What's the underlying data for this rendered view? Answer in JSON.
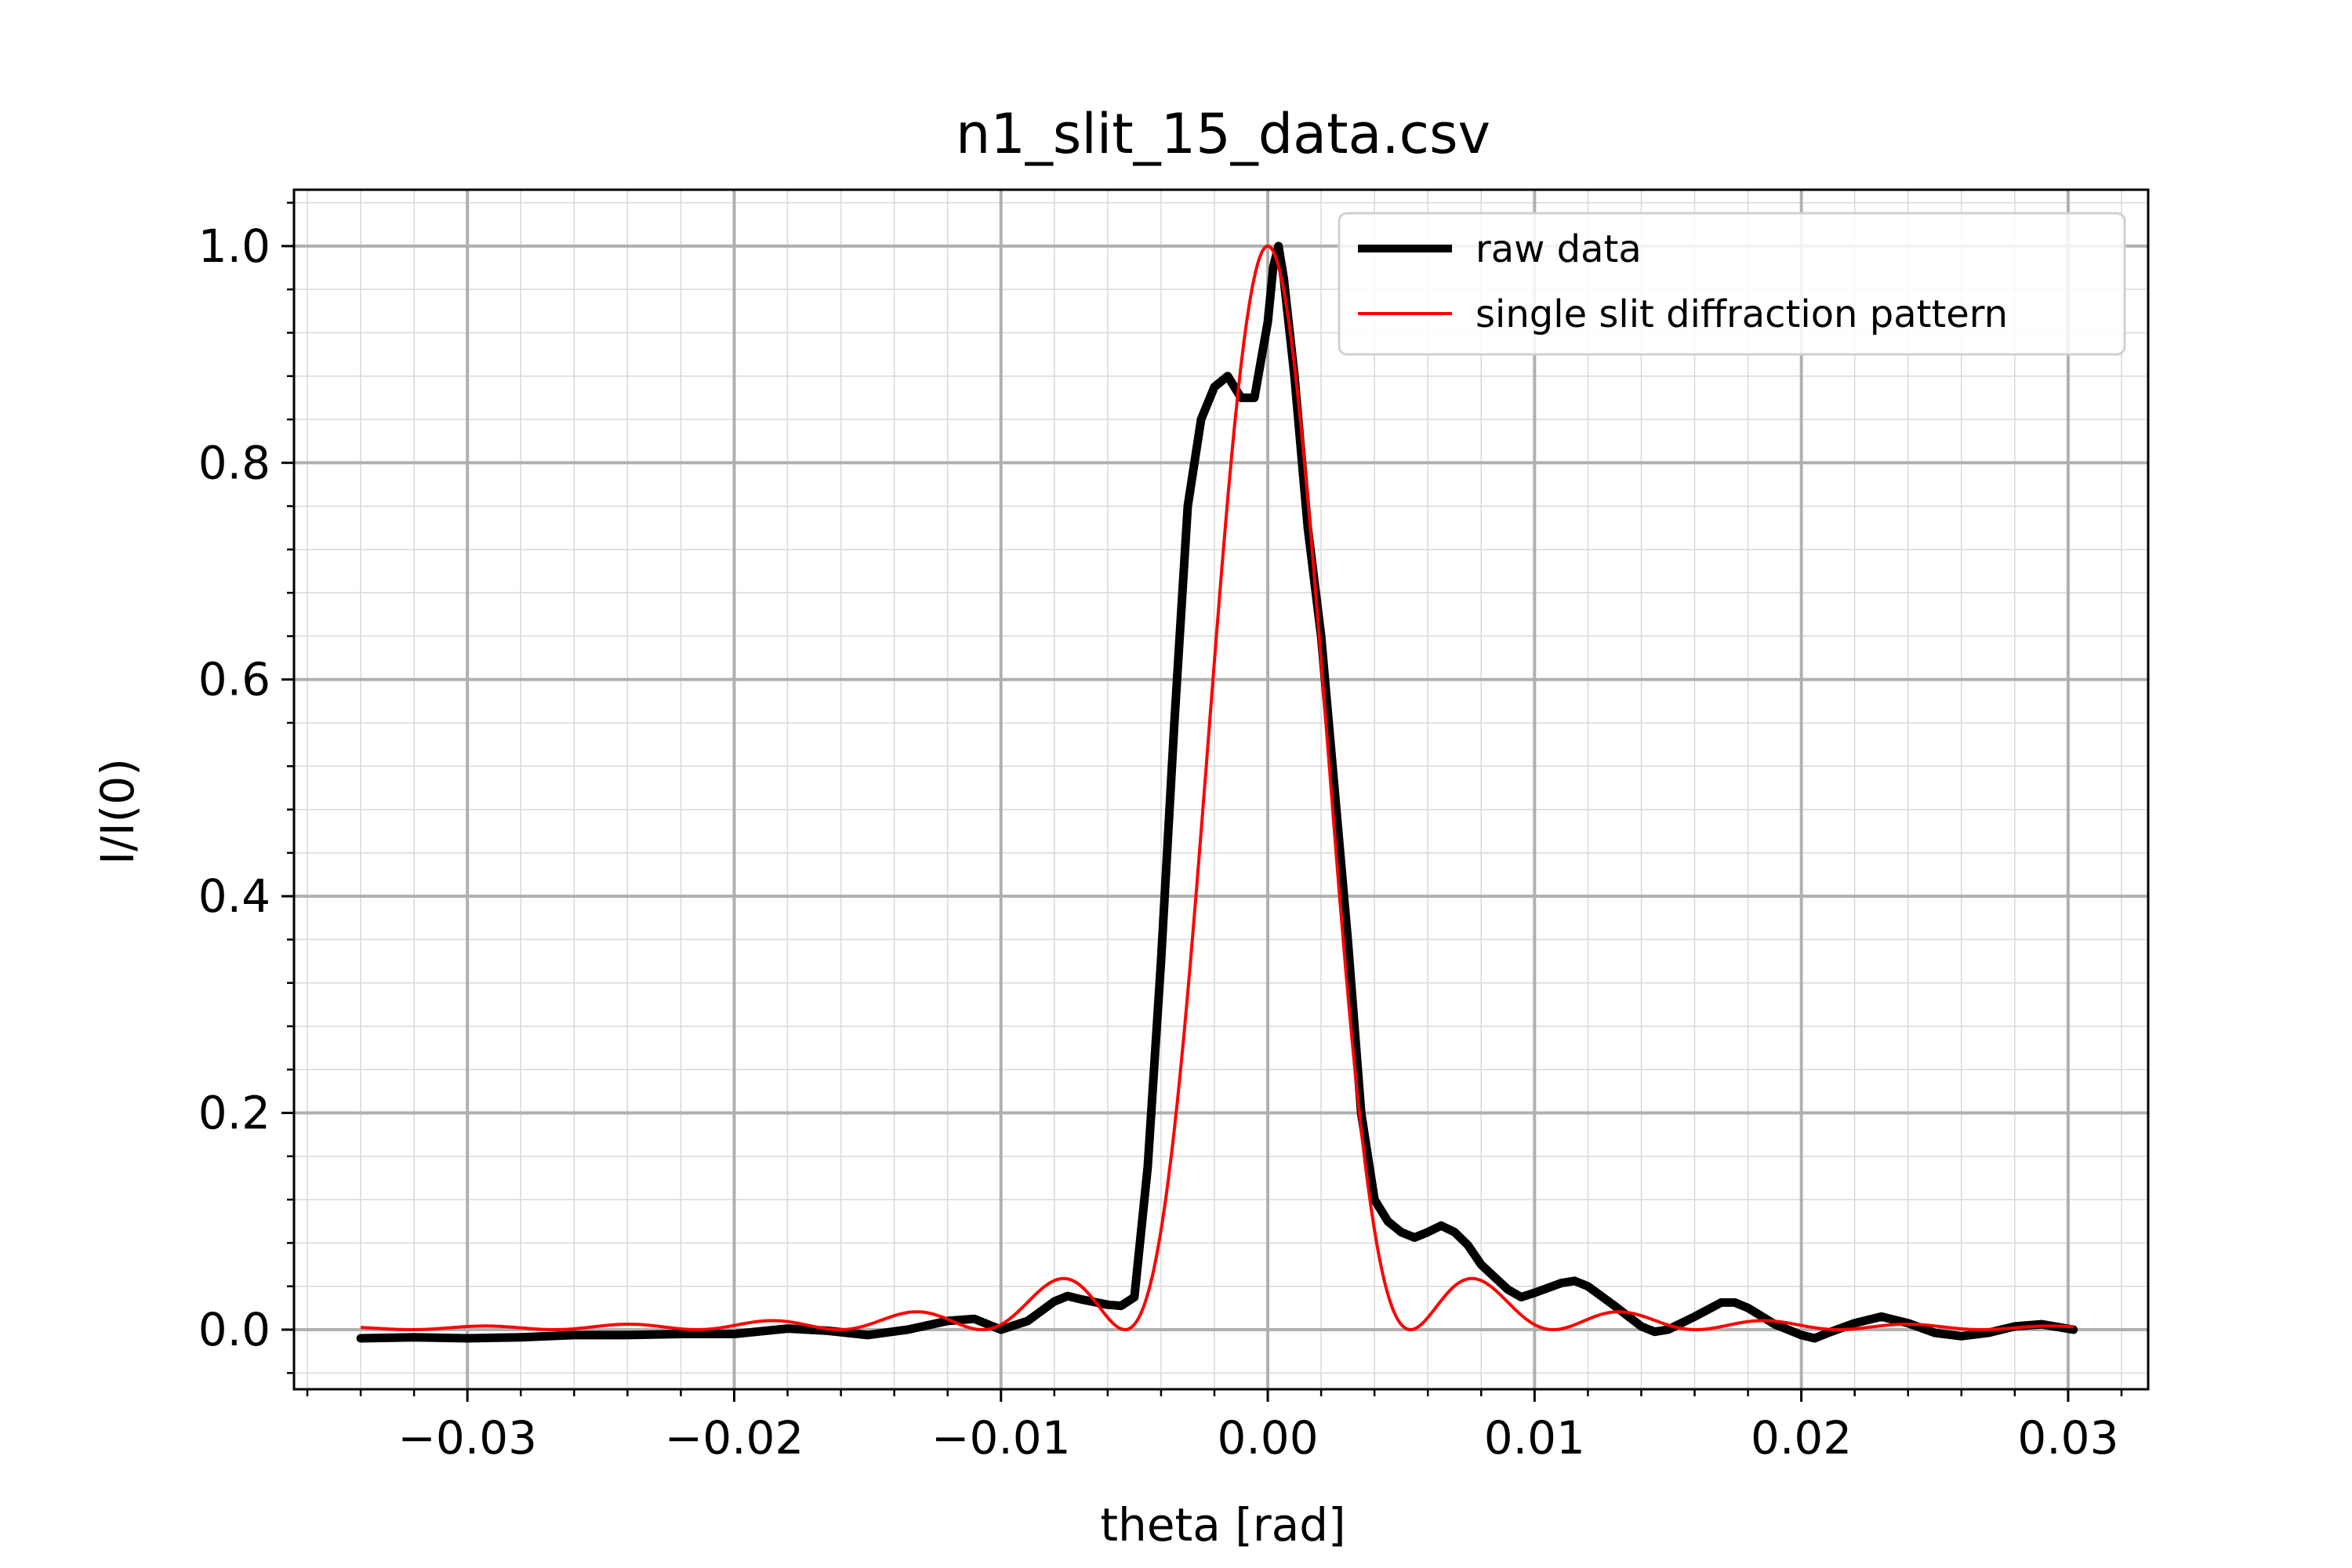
{
  "chart_data": {
    "type": "line",
    "title": "n1_slit_15_data.csv",
    "xlabel": "theta [rad]",
    "ylabel": "I/I(0)",
    "xlim": [
      -0.0365,
      0.033
    ],
    "ylim": [
      -0.055,
      1.052
    ],
    "x_ticks": [
      -0.03,
      -0.02,
      -0.01,
      0.0,
      0.01,
      0.02,
      0.03
    ],
    "x_tick_labels": [
      "−0.03",
      "−0.02",
      "−0.01",
      "0.00",
      "0.01",
      "0.02",
      "0.03"
    ],
    "y_ticks": [
      0.0,
      0.2,
      0.4,
      0.6,
      0.8,
      1.0
    ],
    "y_tick_labels": [
      "0.0",
      "0.2",
      "0.4",
      "0.6",
      "0.8",
      "1.0"
    ],
    "x_minor_step": 0.002,
    "y_minor_step": 0.04,
    "grid": true,
    "legend_position": "top-right",
    "colors": {
      "raw": "#000000",
      "fit": "#ff0000",
      "grid_major": "#b0b0b0",
      "grid_minor": "#d8d8d8"
    },
    "series": [
      {
        "name": "raw data",
        "color": "#000000",
        "x": [
          -0.034,
          -0.032,
          -0.03,
          -0.028,
          -0.026,
          -0.024,
          -0.022,
          -0.02,
          -0.018,
          -0.0165,
          -0.015,
          -0.0135,
          -0.012,
          -0.011,
          -0.01,
          -0.009,
          -0.008,
          -0.0075,
          -0.007,
          -0.006,
          -0.0055,
          -0.005,
          -0.0045,
          -0.004,
          -0.0035,
          -0.003,
          -0.0025,
          -0.002,
          -0.0015,
          -0.001,
          -0.0005,
          0.0,
          0.0002,
          0.0004,
          0.0006,
          0.001,
          0.0015,
          0.002,
          0.0025,
          0.003,
          0.0035,
          0.004,
          0.0045,
          0.005,
          0.0055,
          0.006,
          0.0065,
          0.007,
          0.0075,
          0.008,
          0.009,
          0.0095,
          0.01,
          0.011,
          0.0115,
          0.012,
          0.013,
          0.014,
          0.0145,
          0.015,
          0.016,
          0.017,
          0.0175,
          0.018,
          0.019,
          0.02,
          0.0205,
          0.021,
          0.022,
          0.023,
          0.024,
          0.025,
          0.026,
          0.027,
          0.028,
          0.029,
          0.0302
        ],
        "y": [
          -0.008,
          -0.007,
          -0.008,
          -0.007,
          -0.005,
          -0.005,
          -0.004,
          -0.004,
          0.001,
          -0.001,
          -0.005,
          0.0,
          0.008,
          0.01,
          0.0,
          0.008,
          0.026,
          0.031,
          0.028,
          0.023,
          0.022,
          0.03,
          0.15,
          0.34,
          0.56,
          0.76,
          0.84,
          0.87,
          0.88,
          0.86,
          0.86,
          0.93,
          0.98,
          1.0,
          0.97,
          0.88,
          0.74,
          0.64,
          0.5,
          0.36,
          0.2,
          0.12,
          0.1,
          0.09,
          0.085,
          0.09,
          0.096,
          0.09,
          0.078,
          0.06,
          0.037,
          0.03,
          0.034,
          0.043,
          0.045,
          0.04,
          0.022,
          0.003,
          -0.002,
          0.0,
          0.012,
          0.025,
          0.025,
          0.02,
          0.005,
          -0.005,
          -0.008,
          -0.003,
          0.006,
          0.012,
          0.006,
          -0.003,
          -0.006,
          -0.003,
          0.003,
          0.005,
          0.0
        ]
      },
      {
        "name": "single slit diffraction pattern",
        "color": "#ff0000",
        "model": "sinc_squared",
        "center": 0.0,
        "first_zero": 0.00535,
        "x_range": [
          -0.034,
          0.0302
        ]
      }
    ]
  }
}
